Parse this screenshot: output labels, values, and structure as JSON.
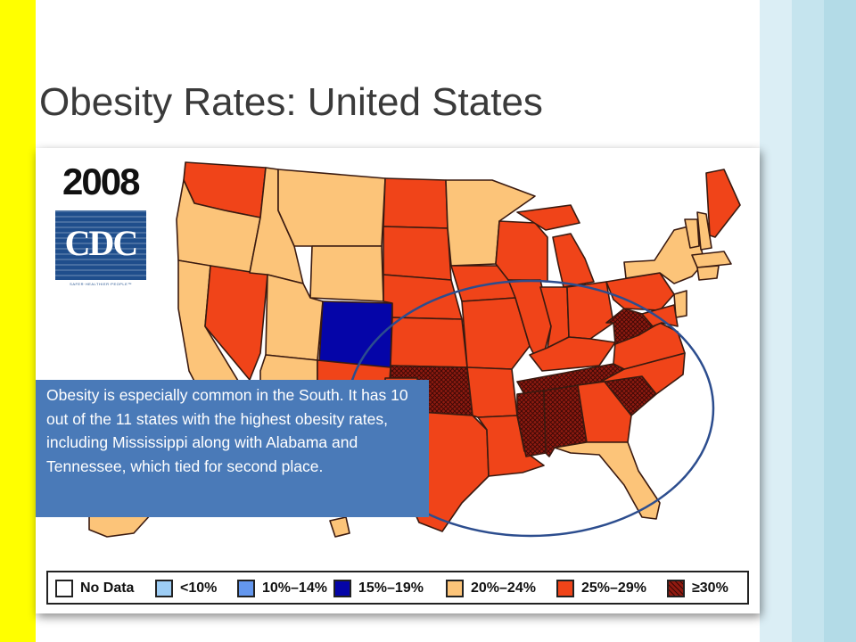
{
  "slide": {
    "title": "Obesity Rates: United States"
  },
  "map": {
    "year": "2008",
    "logo_text": "CDC",
    "logo_tagline": "SAFER·HEALTHIER·PEOPLE™",
    "colors": {
      "no_data": "#ffffff",
      "lt10": "#9dcdf5",
      "10_14": "#6497ee",
      "15_19": "#0505a8",
      "20_24": "#fcc479",
      "25_29": "#f04419",
      "gte30": "#8f1a10"
    },
    "legend": [
      {
        "label": "No Data",
        "color": "#ffffff"
      },
      {
        "label": "<10%",
        "color": "#9dcdf5"
      },
      {
        "label": "10%–14%",
        "color": "#6497ee"
      },
      {
        "label": "15%–19%",
        "color": "#0505a8"
      },
      {
        "label": "20%–24%",
        "color": "#fcc479"
      },
      {
        "label": "25%–29%",
        "color": "#f04419"
      },
      {
        "label": "≥30%",
        "color": "#8f1a10"
      }
    ]
  },
  "callout": {
    "text": "Obesity is especially common in the South. It has 10 out of the 11 states with the highest obesity rates, including Mississippi along with Alabama and Tennessee, which tied for second place."
  }
}
